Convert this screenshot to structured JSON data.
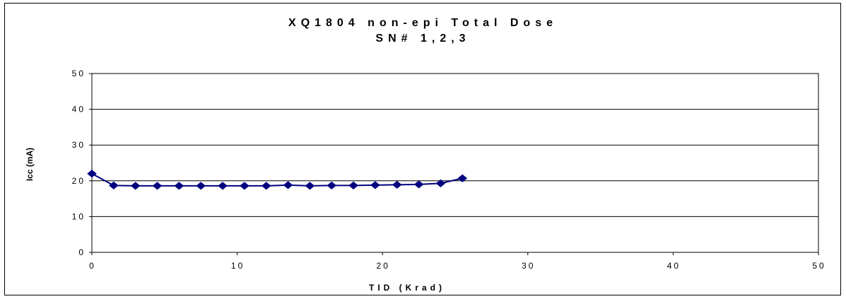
{
  "chart_data": {
    "type": "line",
    "title": "XQ1804 non-epi Total Dose",
    "subtitle": "SN# 1,2,3",
    "xlabel": "TID (Krad)",
    "ylabel": "Icc (mA)",
    "xlim": [
      0,
      50
    ],
    "ylim": [
      0,
      50
    ],
    "xticks": [
      "0",
      "10",
      "20",
      "30",
      "40",
      "50"
    ],
    "yticks": [
      "0",
      "10",
      "20",
      "30",
      "40",
      "50"
    ],
    "grid": "horizontal",
    "series": [
      {
        "color": "#000080",
        "x": [
          0,
          1.5,
          3,
          4.5,
          6,
          7.5,
          9,
          10.5,
          12,
          13.5,
          15,
          16.5,
          18,
          19.5,
          21,
          22.5,
          24,
          25.5
        ],
        "y": [
          22,
          18.7,
          18.6,
          18.6,
          18.6,
          18.6,
          18.6,
          18.6,
          18.6,
          18.8,
          18.6,
          18.7,
          18.7,
          18.8,
          18.9,
          19.0,
          19.3,
          20.7
        ]
      }
    ]
  }
}
